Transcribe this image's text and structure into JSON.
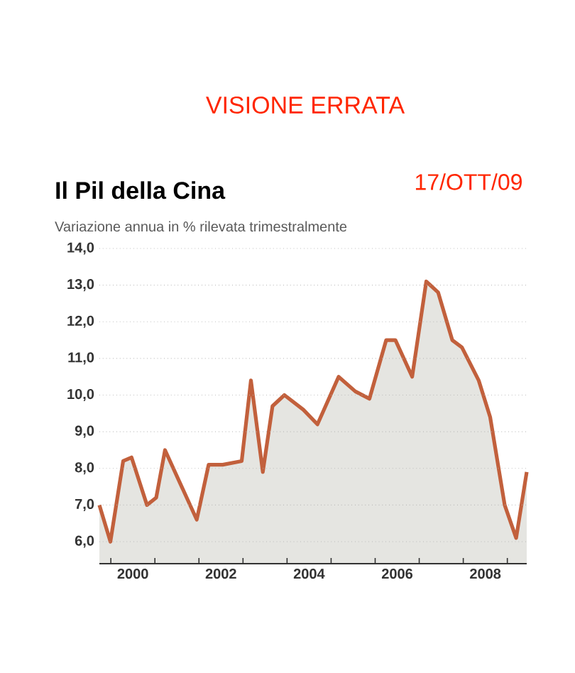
{
  "chart_data": {
    "type": "area",
    "title": "Il Pil della Cina",
    "subtitle": "Variazione annua in % rilevata trimestralmente",
    "annotations": [
      "VISIONE ERRATA",
      "17/OTT/09"
    ],
    "series": [
      {
        "color": "#c2603c",
        "x": [
          1999.74,
          1999.99,
          2000.28,
          2000.47,
          2000.82,
          2001.03,
          2001.23,
          2001.57,
          2001.95,
          2002.22,
          2002.54,
          2002.97,
          2003.18,
          2003.45,
          2003.67,
          2003.94,
          2004.37,
          2004.69,
          2005.17,
          2005.55,
          2005.87,
          2006.25,
          2006.46,
          2006.84,
          2007.16,
          2007.43,
          2007.75,
          2007.97,
          2008.35,
          2008.61,
          2008.94,
          2009.2,
          2009.44
        ],
        "values": [
          7.0,
          6.0,
          8.2,
          8.3,
          7.0,
          7.2,
          8.5,
          7.6,
          6.6,
          8.1,
          8.1,
          8.2,
          10.4,
          7.9,
          9.7,
          10.0,
          9.6,
          9.2,
          10.5,
          10.1,
          9.9,
          11.5,
          11.5,
          10.5,
          13.1,
          12.8,
          11.5,
          11.3,
          10.4,
          9.4,
          7.0,
          6.1,
          7.9
        ]
      }
    ],
    "xlim": [
      1999.74,
      2009.44
    ],
    "ylim": [
      5.4,
      14
    ],
    "xticks": [
      {
        "value": 2000,
        "label": null
      },
      {
        "value": 2000.5,
        "label": "2000"
      },
      {
        "value": 2001,
        "label": null
      },
      {
        "value": 2002,
        "label": null
      },
      {
        "value": 2002.5,
        "label": "2002"
      },
      {
        "value": 2003,
        "label": null
      },
      {
        "value": 2004,
        "label": null
      },
      {
        "value": 2004.5,
        "label": "2004"
      },
      {
        "value": 2005,
        "label": null
      },
      {
        "value": 2006,
        "label": null
      },
      {
        "value": 2006.5,
        "label": "2006"
      },
      {
        "value": 2007,
        "label": null
      },
      {
        "value": 2008,
        "label": null
      },
      {
        "value": 2008.5,
        "label": "2008"
      },
      {
        "value": 2009,
        "label": null
      }
    ],
    "yticks": [
      {
        "value": 6,
        "label": "6,0"
      },
      {
        "value": 7,
        "label": "7,0"
      },
      {
        "value": 8,
        "label": "8,0"
      },
      {
        "value": 9,
        "label": "9,0"
      },
      {
        "value": 10,
        "label": "10,0"
      },
      {
        "value": 11,
        "label": "11,0"
      },
      {
        "value": 12,
        "label": "12,0"
      },
      {
        "value": 13,
        "label": "13,0"
      },
      {
        "value": 14,
        "label": "14,0"
      }
    ],
    "grid": "y",
    "marker": "none",
    "line_style": "solid"
  }
}
